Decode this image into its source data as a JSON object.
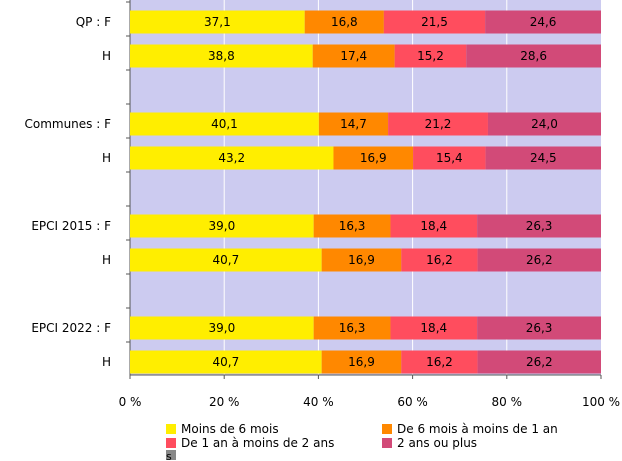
{
  "chart_data": {
    "type": "bar",
    "orientation": "horizontal",
    "stacked": true,
    "categories": [
      "QP : F",
      "H",
      "Communes : F",
      "H",
      "EPCI 2015 : F",
      "H",
      "EPCI 2022 : F",
      "H"
    ],
    "series": [
      {
        "name": "Moins de 6 mois",
        "color": "#ffee00",
        "values": [
          37.1,
          38.8,
          40.1,
          43.2,
          39.0,
          40.7,
          39.0,
          40.7
        ],
        "labels": [
          "37,1",
          "38,8",
          "40,1",
          "43,2",
          "39,0",
          "40,7",
          "39,0",
          "40,7"
        ]
      },
      {
        "name": "De 6 mois à moins de 1 an",
        "color": "#ff8800",
        "values": [
          16.8,
          17.4,
          14.7,
          16.9,
          16.3,
          16.9,
          16.3,
          16.9
        ],
        "labels": [
          "16,8",
          "17,4",
          "14,7",
          "16,9",
          "16,3",
          "16,9",
          "16,3",
          "16,9"
        ]
      },
      {
        "name": "De 1 an à moins de 2 ans",
        "color": "#ff4d5e",
        "values": [
          21.5,
          15.2,
          21.2,
          15.4,
          18.4,
          16.2,
          18.4,
          16.2
        ],
        "labels": [
          "21,5",
          "15,2",
          "21,2",
          "15,4",
          "18,4",
          "16,2",
          "18,4",
          "16,2"
        ]
      },
      {
        "name": "2 ans ou plus",
        "color": "#d24a78",
        "values": [
          24.6,
          28.6,
          24.0,
          24.5,
          26.3,
          26.2,
          26.3,
          26.2
        ],
        "labels": [
          "24,6",
          "28,6",
          "24,0",
          "24,5",
          "26,3",
          "26,2",
          "26,3",
          "26,2"
        ]
      }
    ],
    "extra_legend": {
      "name": "s",
      "color": "#888888"
    },
    "xlim": [
      0,
      100
    ],
    "xticks": [
      "0 %",
      "20 %",
      "40 %",
      "60 %",
      "80 %",
      "100 %"
    ],
    "grid": true,
    "plot_background": "#cccbf0",
    "legend_position": "bottom"
  }
}
